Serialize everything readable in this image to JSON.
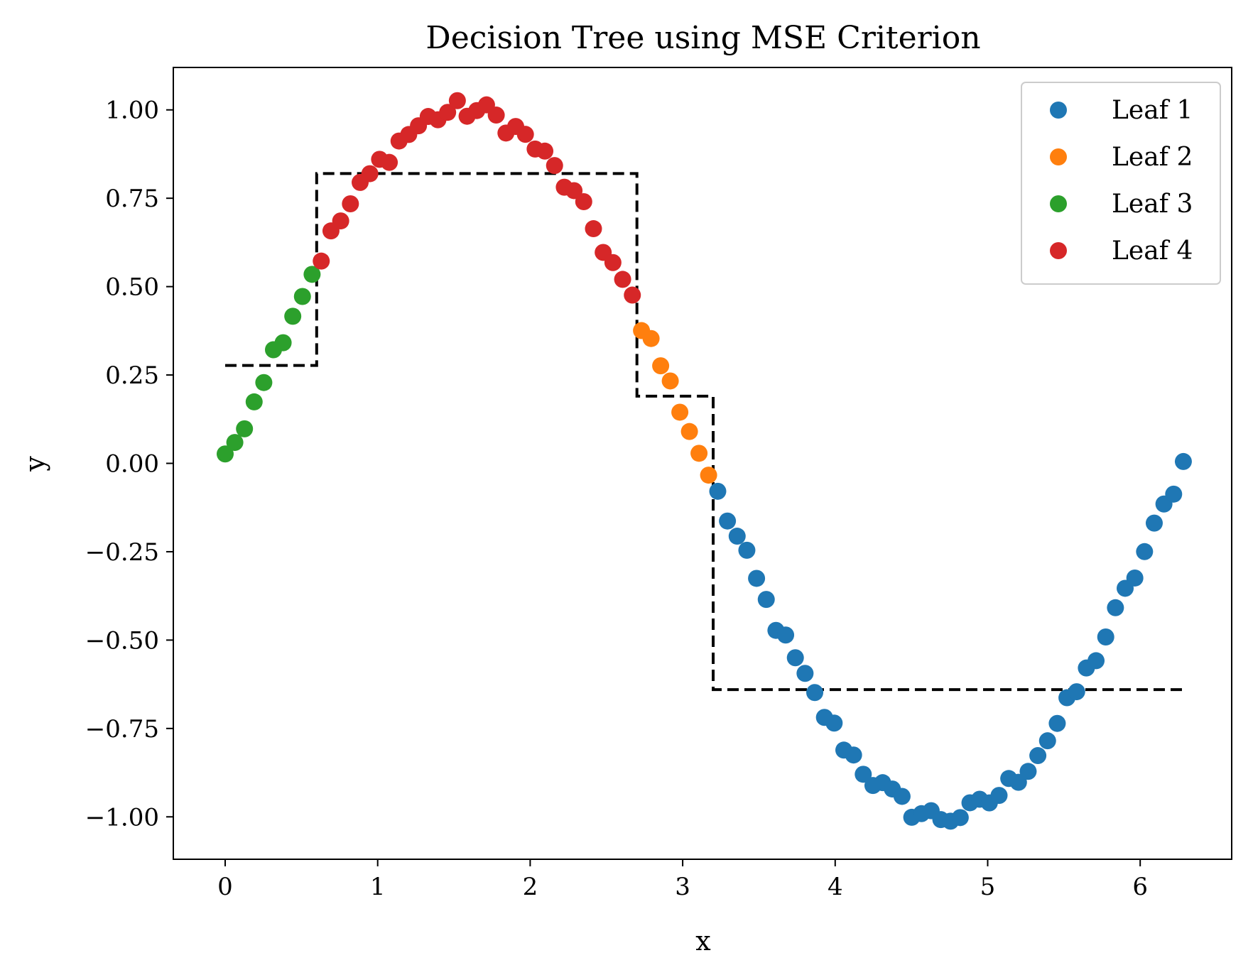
{
  "chart_data": {
    "type": "scatter",
    "title": "Decision Tree using MSE Criterion",
    "xlabel": "x",
    "ylabel": "y",
    "xlim": [
      -0.34,
      6.6
    ],
    "ylim": [
      -1.12,
      1.12
    ],
    "x_ticks": [
      0,
      1,
      2,
      3,
      4,
      5,
      6
    ],
    "x_tick_labels": [
      "0",
      "1",
      "2",
      "3",
      "4",
      "5",
      "6"
    ],
    "y_ticks": [
      1.0,
      0.75,
      0.5,
      0.25,
      0.0,
      -0.25,
      -0.5,
      -0.75,
      -1.0
    ],
    "y_tick_labels": [
      "1.00",
      "0.75",
      "0.50",
      "0.25",
      "0.00",
      "−0.25",
      "−0.50",
      "−0.75",
      "−1.00"
    ],
    "grid": false,
    "legend_position": "top-right",
    "series": [
      {
        "name": "Leaf 1",
        "color": "#1f77b4",
        "x_range": [
          3.23,
          6.283
        ],
        "n_points": 49,
        "function": "sin(x) + noise"
      },
      {
        "name": "Leaf 2",
        "color": "#ff7f0e",
        "x_range": [
          2.73,
          3.17
        ],
        "n_points": 8,
        "function": "sin(x) + noise"
      },
      {
        "name": "Leaf 3",
        "color": "#2ca02c",
        "x_range": [
          0.0,
          0.57
        ],
        "n_points": 10,
        "function": "sin(x) + noise"
      },
      {
        "name": "Leaf 4",
        "color": "#d62728",
        "x_range": [
          0.63,
          2.67
        ],
        "n_points": 33,
        "function": "sin(x) + noise"
      }
    ],
    "prediction_line": {
      "style": "dashed",
      "color": "#000000",
      "steps": [
        {
          "x_start": 0.0,
          "x_end": 0.6,
          "y": 0.277
        },
        {
          "x_start": 0.6,
          "x_end": 2.7,
          "y": 0.82
        },
        {
          "x_start": 2.7,
          "x_end": 3.2,
          "y": 0.19
        },
        {
          "x_start": 3.2,
          "x_end": 6.283,
          "y": -0.64
        }
      ]
    }
  }
}
